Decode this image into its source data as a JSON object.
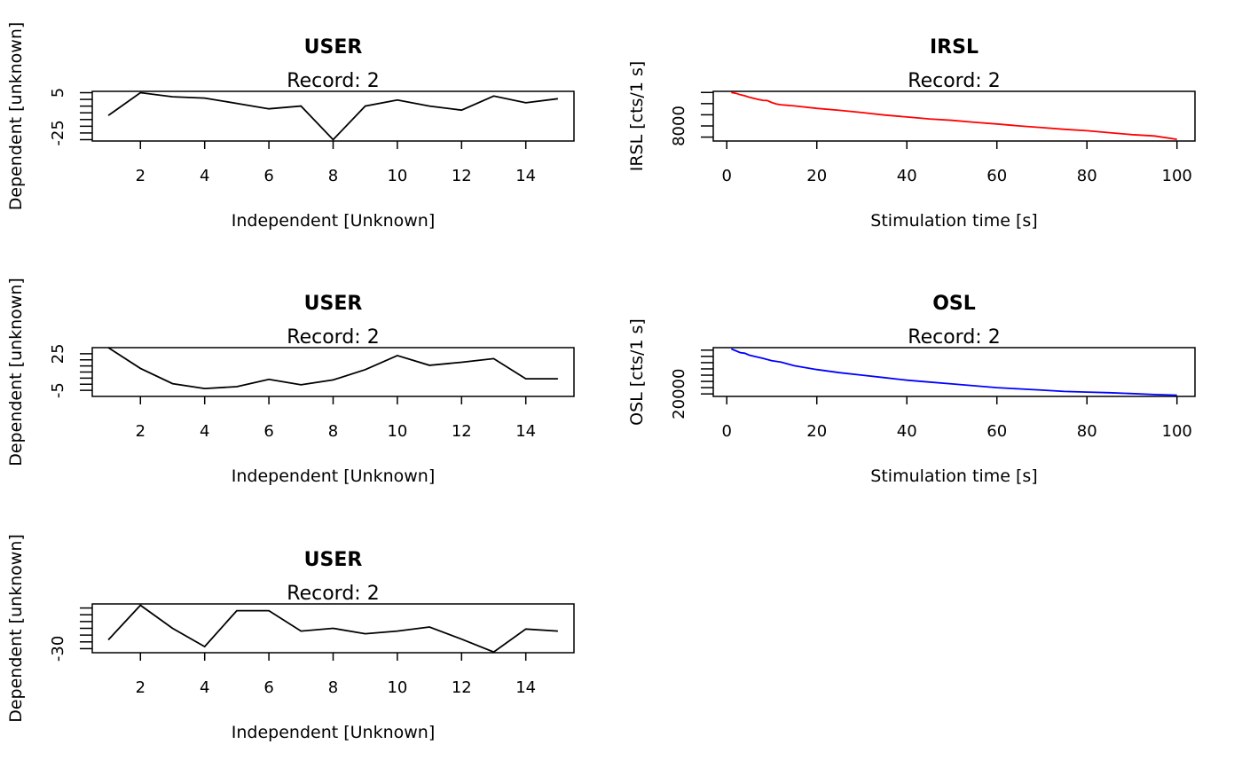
{
  "chart_data": [
    {
      "type": "line",
      "title": "USER",
      "subtitle": "Record: 2",
      "xlabel": "Independent [Unknown]",
      "ylabel": "Dependent [unknown]",
      "color": "#000000",
      "xlim": [
        0.5,
        15.5
      ],
      "ylim": [
        -31,
        6
      ],
      "xticks": [
        2,
        4,
        6,
        8,
        10,
        12,
        14
      ],
      "yticks": [
        5,
        0,
        -5,
        -10,
        -15,
        -20,
        -25,
        -30
      ],
      "ytick_labels": [
        "5",
        "",
        "",
        "",
        "",
        "",
        "-25",
        ""
      ],
      "x": [
        1,
        2,
        3,
        4,
        5,
        6,
        7,
        8,
        9,
        10,
        11,
        12,
        13,
        14,
        15
      ],
      "y": [
        -12,
        5,
        2,
        1,
        -3,
        -7,
        -5,
        -30,
        -5,
        -0.5,
        -5,
        -8,
        2.5,
        -2.5,
        0.5
      ]
    },
    {
      "type": "line",
      "title": "IRSL",
      "subtitle": "Record: 2",
      "xlabel": "Stimulation time [s]",
      "ylabel": "IRSL [cts/1 s]",
      "color": "#ff0000",
      "xlim": [
        -3,
        104
      ],
      "ylim": [
        5300,
        14200
      ],
      "xticks": [
        0,
        20,
        40,
        60,
        80,
        100
      ],
      "yticks": [
        6000,
        8000,
        10000,
        12000,
        14000
      ],
      "ytick_labels": [
        "",
        "8000",
        "",
        "",
        ""
      ],
      "x": [
        1,
        2,
        3,
        4,
        5,
        6,
        7,
        8,
        9,
        10,
        11,
        12,
        15,
        20,
        25,
        30,
        35,
        40,
        45,
        50,
        55,
        60,
        65,
        70,
        75,
        80,
        85,
        90,
        95,
        100
      ],
      "y": [
        14000,
        13850,
        13600,
        13400,
        13150,
        12950,
        12750,
        12600,
        12550,
        12200,
        11950,
        11800,
        11600,
        11150,
        10800,
        10400,
        9950,
        9600,
        9250,
        9000,
        8650,
        8350,
        8000,
        7700,
        7400,
        7150,
        6800,
        6450,
        6200,
        5600
      ]
    },
    {
      "type": "line",
      "title": "USER",
      "subtitle": "Record: 2",
      "xlabel": "Independent [Unknown]",
      "ylabel": "Dependent [unknown]",
      "color": "#000000",
      "xlim": [
        0.5,
        15.5
      ],
      "ylim": [
        -10,
        30
      ],
      "xticks": [
        2,
        4,
        6,
        8,
        10,
        12,
        14
      ],
      "yticks": [
        -5,
        0,
        5,
        10,
        15,
        20,
        25
      ],
      "ytick_labels": [
        "-5",
        "",
        "",
        "",
        "",
        "",
        "25"
      ],
      "x": [
        1,
        2,
        3,
        4,
        5,
        6,
        7,
        8,
        9,
        10,
        11,
        12,
        13,
        14,
        15
      ],
      "y": [
        30,
        13,
        0.5,
        -3.5,
        -2,
        4,
        -0.5,
        3.5,
        12,
        23.5,
        15.5,
        18,
        21,
        4.5,
        4.5
      ]
    },
    {
      "type": "line",
      "title": "OSL",
      "subtitle": "Record: 2",
      "xlabel": "Stimulation time [s]",
      "ylabel": "OSL [cts/1 s]",
      "color": "#0000ff",
      "xlim": [
        -3,
        104
      ],
      "ylim": [
        18000,
        57000
      ],
      "xticks": [
        0,
        20,
        40,
        60,
        80,
        100
      ],
      "yticks": [
        20000,
        25000,
        30000,
        35000,
        40000,
        45000,
        50000,
        55000
      ],
      "ytick_labels": [
        "20000",
        "",
        "",
        "",
        "",
        "",
        "",
        ""
      ],
      "x": [
        1,
        2,
        3,
        4,
        5,
        8,
        10,
        12,
        15,
        20,
        25,
        30,
        35,
        40,
        45,
        50,
        55,
        60,
        65,
        70,
        75,
        80,
        85,
        90,
        95,
        100
      ],
      "y": [
        56000,
        54500,
        53000,
        52500,
        51000,
        48500,
        46500,
        45500,
        42500,
        39500,
        37000,
        35000,
        33000,
        31000,
        29500,
        28000,
        26500,
        25000,
        24000,
        23000,
        22000,
        21500,
        21000,
        20300,
        19500,
        19000
      ]
    },
    {
      "type": "line",
      "title": "USER",
      "subtitle": "Record: 2",
      "xlabel": "Independent [Unknown]",
      "ylabel": "Dependent [unknown]",
      "color": "#000000",
      "xlim": [
        0.5,
        15.5
      ],
      "ylim": [
        -33,
        3
      ],
      "xticks": [
        2,
        4,
        6,
        8,
        10,
        12,
        14
      ],
      "yticks": [
        -30,
        -25,
        -20,
        -15,
        -10,
        -5,
        0
      ],
      "ytick_labels": [
        "-30",
        "",
        "",
        "",
        "",
        "",
        ""
      ],
      "x": [
        1,
        2,
        3,
        4,
        5,
        6,
        7,
        8,
        9,
        10,
        11,
        12,
        13,
        14,
        15
      ],
      "y": [
        -23.5,
        2,
        -15,
        -28.5,
        -2,
        -2,
        -17,
        -15,
        -19,
        -17,
        -14,
        -23,
        -32.5,
        -15.5,
        -17
      ]
    }
  ]
}
